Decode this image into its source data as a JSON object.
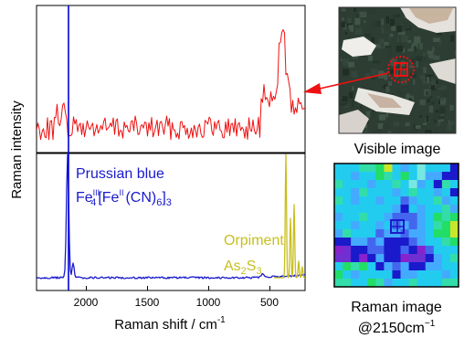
{
  "spectra_figure": {
    "y_axis_label": "Raman intensity",
    "x_axis_label": "Raman shift / cm",
    "x_axis_label_superscript": "-1",
    "x_ticks": [
      "2000",
      "1500",
      "1000",
      "500"
    ],
    "colors": {
      "upper_spectrum": "#ee1111",
      "lower_spectrum": "#1a1acc",
      "orpiment_peaks": "#c8bf1e",
      "marker_line": "#0000dd"
    }
  },
  "annotations": {
    "prussian_blue_name": "Prussian blue",
    "prussian_blue_formula": {
      "fe_a": "Fe",
      "sup_a": "III",
      "sub_a": "4",
      "br_open": "[",
      "fe_b": "Fe",
      "sup_b": "II",
      "cn": "(CN)",
      "sub_cn": "6",
      "br_close": "]",
      "sub_end": "3"
    },
    "orpiment_name": "Orpiment",
    "orpiment_formula": {
      "as": "As",
      "sub_as": "2",
      "s": "S",
      "sub_s": "3"
    }
  },
  "images": {
    "visible_caption": "Visible image",
    "raman_caption_line1": "Raman image",
    "raman_caption_line2": "@2150cm",
    "raman_caption_superscript": "−1"
  }
}
